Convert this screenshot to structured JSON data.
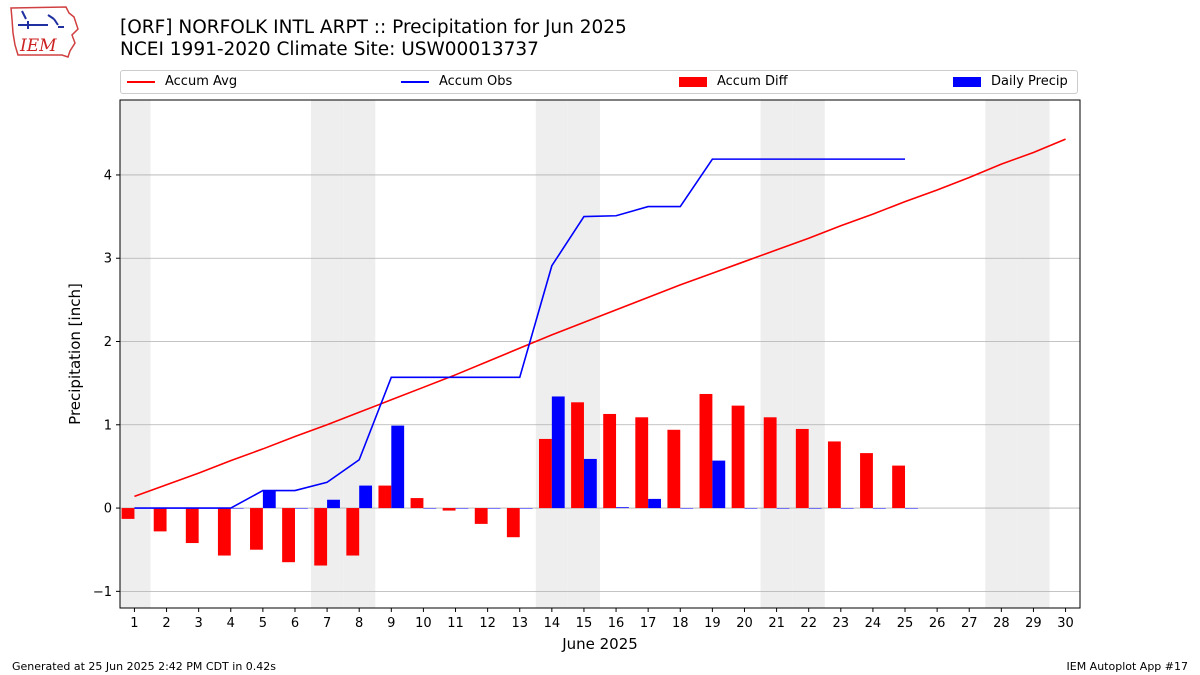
{
  "title_line1": "[ORF] NORFOLK INTL ARPT :: Precipitation for Jun 2025",
  "title_line2": "NCEI 1991-2020 Climate Site: USW00013737",
  "logo": {
    "text": "IEM",
    "icon": "iowa-state-outline-logo-icon"
  },
  "footer_left": "Generated at 25 Jun 2025 2:42 PM CDT in 0.42s",
  "footer_right": "IEM Autoplot App #17",
  "colors": {
    "accum_avg": "#ff0000",
    "accum_obs": "#0000ff",
    "accum_diff": "#ff0000",
    "daily_precip": "#0000ff",
    "weekend_shade": "#eeeeee",
    "grid": "#b0b0b0"
  },
  "chart_data": {
    "type": "bar",
    "xlabel": "June 2025",
    "ylabel": "Precipitation [inch]",
    "ylim": [
      -1.2,
      4.9
    ],
    "yticks": [
      -1,
      0,
      1,
      2,
      3,
      4
    ],
    "days": [
      1,
      2,
      3,
      4,
      5,
      6,
      7,
      8,
      9,
      10,
      11,
      12,
      13,
      14,
      15,
      16,
      17,
      18,
      19,
      20,
      21,
      22,
      23,
      24,
      25,
      26,
      27,
      28,
      29,
      30
    ],
    "shaded_days": [
      1,
      7,
      8,
      14,
      15,
      21,
      22,
      28,
      29
    ],
    "grid": "horizontal",
    "legend_placement": "top",
    "series": [
      {
        "name": "Accum Avg",
        "kind": "line",
        "values": [
          0.14,
          0.28,
          0.42,
          0.57,
          0.71,
          0.86,
          1.0,
          1.15,
          1.3,
          1.45,
          1.6,
          1.76,
          1.92,
          2.08,
          2.23,
          2.38,
          2.53,
          2.68,
          2.82,
          2.96,
          3.1,
          3.24,
          3.39,
          3.53,
          3.68,
          3.82,
          3.97,
          4.13,
          4.27,
          4.43
        ]
      },
      {
        "name": "Accum Obs",
        "kind": "line",
        "values": [
          0.0,
          0.0,
          0.0,
          0.0,
          0.21,
          0.21,
          0.31,
          0.58,
          1.57,
          1.57,
          1.57,
          1.57,
          1.57,
          2.91,
          3.5,
          3.51,
          3.62,
          3.62,
          4.19,
          4.19,
          4.19,
          4.19,
          4.19,
          4.19,
          4.19
        ]
      },
      {
        "name": "Accum Diff",
        "kind": "bar",
        "values": [
          -0.13,
          -0.28,
          -0.42,
          -0.57,
          -0.5,
          -0.65,
          -0.69,
          -0.57,
          0.27,
          0.12,
          -0.03,
          -0.19,
          -0.35,
          0.83,
          1.27,
          1.13,
          1.09,
          0.94,
          1.37,
          1.23,
          1.09,
          0.95,
          0.8,
          0.66,
          0.51
        ]
      },
      {
        "name": "Daily Precip",
        "kind": "bar",
        "values": [
          0.0,
          0.0,
          0.0,
          0.0,
          0.21,
          0.0,
          0.1,
          0.27,
          0.99,
          0.0,
          0.0,
          0.0,
          0.0,
          1.34,
          0.59,
          0.01,
          0.11,
          0.0,
          0.57,
          0.0,
          0.0,
          0.0,
          0.0,
          0.0,
          0.0
        ]
      }
    ]
  }
}
